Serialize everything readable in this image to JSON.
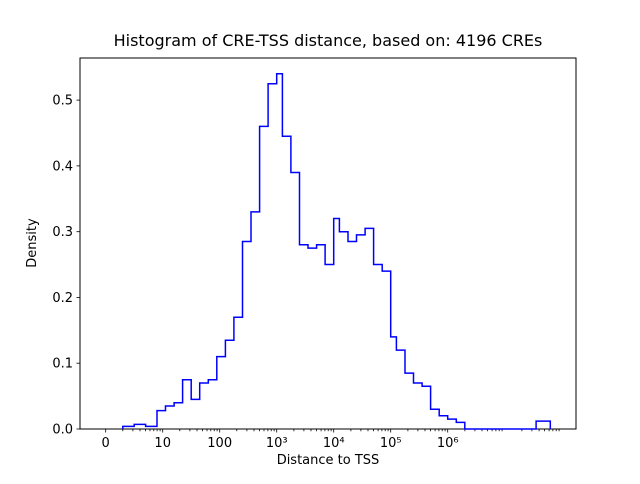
{
  "chart_data": {
    "type": "histogram",
    "style": "step-outline",
    "title": "Histogram of CRE-TSS distance, based on: 4196 CREs",
    "xlabel": "Distance to TSS",
    "ylabel": "Density",
    "x_scale": "symlog-base10",
    "grid": false,
    "legend": null,
    "line_color": "#0000ff",
    "xlim_log10": [
      -0.45,
      8.25
    ],
    "ylim": [
      0,
      0.564
    ],
    "x_ticks": [
      {
        "u": 0,
        "label": "0"
      },
      {
        "u": 1,
        "label": "10"
      },
      {
        "u": 2,
        "label": "100"
      },
      {
        "u": 3,
        "label": "10³"
      },
      {
        "u": 4,
        "label": "10⁴"
      },
      {
        "u": 5,
        "label": "10⁵"
      },
      {
        "u": 6,
        "label": "10⁶"
      }
    ],
    "y_ticks": [
      {
        "v": 0,
        "label": "0.0"
      },
      {
        "v": 0.1,
        "label": "0.1"
      },
      {
        "v": 0.2,
        "label": "0.2"
      },
      {
        "v": 0.3,
        "label": "0.3"
      },
      {
        "v": 0.4,
        "label": "0.4"
      },
      {
        "v": 0.5,
        "label": "0.5"
      }
    ],
    "bin_edges_log10": [
      0.3,
      0.5,
      0.7,
      0.9,
      1.05,
      1.2,
      1.35,
      1.5,
      1.65,
      1.8,
      1.95,
      2.1,
      2.25,
      2.4,
      2.55,
      2.7,
      2.85,
      3.0,
      3.1,
      3.25,
      3.4,
      3.55,
      3.7,
      3.85,
      4.0,
      4.1,
      4.25,
      4.4,
      4.55,
      4.7,
      4.85,
      5.0,
      5.1,
      5.25,
      5.4,
      5.55,
      5.7,
      5.85,
      6.0,
      6.15,
      6.3,
      7.55,
      7.8
    ],
    "densities": [
      0.004,
      0.007,
      0.004,
      0.028,
      0.035,
      0.04,
      0.075,
      0.045,
      0.07,
      0.075,
      0.11,
      0.135,
      0.17,
      0.285,
      0.33,
      0.46,
      0.525,
      0.54,
      0.445,
      0.39,
      0.28,
      0.275,
      0.28,
      0.25,
      0.32,
      0.3,
      0.285,
      0.295,
      0.305,
      0.25,
      0.24,
      0.14,
      0.12,
      0.085,
      0.07,
      0.065,
      0.03,
      0.02,
      0.015,
      0.01,
      0,
      0.012
    ]
  }
}
